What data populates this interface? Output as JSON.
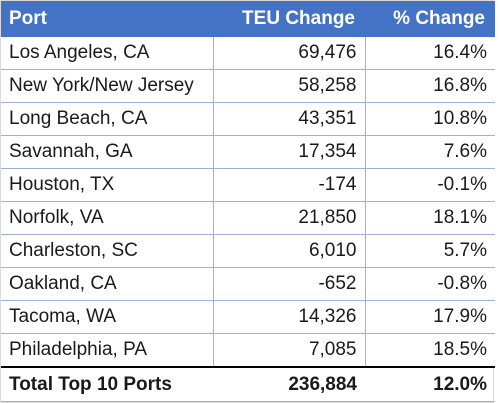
{
  "table": {
    "headers": {
      "port": "Port",
      "teu_change": "TEU Change",
      "pct_change": "% Change"
    },
    "rows": [
      {
        "port": "Los Angeles, CA",
        "teu_change": "69,476",
        "pct_change": "16.4%"
      },
      {
        "port": "New York/New Jersey",
        "teu_change": "58,258",
        "pct_change": "16.8%"
      },
      {
        "port": "Long Beach, CA",
        "teu_change": "43,351",
        "pct_change": "10.8%"
      },
      {
        "port": "Savannah, GA",
        "teu_change": "17,354",
        "pct_change": "7.6%"
      },
      {
        "port": "Houston, TX",
        "teu_change": "-174",
        "pct_change": "-0.1%"
      },
      {
        "port": "Norfolk, VA",
        "teu_change": "21,850",
        "pct_change": "18.1%"
      },
      {
        "port": "Charleston, SC",
        "teu_change": "6,010",
        "pct_change": "5.7%"
      },
      {
        "port": "Oakland, CA",
        "teu_change": "-652",
        "pct_change": "-0.8%"
      },
      {
        "port": "Tacoma, WA",
        "teu_change": "14,326",
        "pct_change": "17.9%"
      },
      {
        "port": "Philadelphia, PA",
        "teu_change": "7,085",
        "pct_change": "18.5%"
      }
    ],
    "total": {
      "label": "Total Top 10 Ports",
      "teu_change": "236,884",
      "pct_change": "12.0%"
    }
  },
  "colors": {
    "header_background": "#4472c4",
    "header_text": "#ffffff",
    "row_border": "#9bb1d8",
    "total_rule": "#000000"
  }
}
